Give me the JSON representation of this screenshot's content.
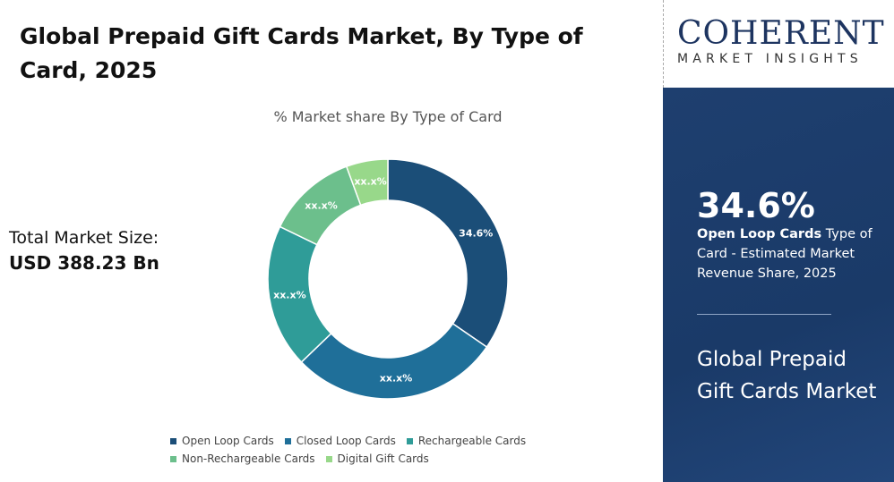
{
  "header": {
    "title": "Global Prepaid Gift Cards Market, By Type of Card, 2025"
  },
  "total_market": {
    "label": "Total Market Size:",
    "value": "USD 388.23 Bn"
  },
  "logo": {
    "name": "COHERENT",
    "tagline": "MARKET INSIGHTS"
  },
  "side_panel": {
    "highlight_value": "34.6%",
    "highlight_segment": "Open Loop Cards",
    "highlight_text": " Type of Card - Estimated Market Revenue Share, 2025",
    "market_name": "Global Prepaid Gift Cards Market"
  },
  "chart_data": {
    "type": "pie",
    "donut": true,
    "title": "% Market share By Type of Card",
    "categories": [
      "Open Loop Cards",
      "Closed Loop Cards",
      "Rechargeable Cards",
      "Non-Rechargeable Cards",
      "Digital Gift Cards"
    ],
    "values": [
      34.6,
      28.2,
      19.4,
      12.2,
      5.6
    ],
    "labels": [
      "34.6%",
      "xx.x%",
      "xx.x%",
      "xx.x%",
      "xx.x%"
    ],
    "colors": [
      "#1b4e78",
      "#1f6f99",
      "#2f9c98",
      "#6cbf8c",
      "#98d88a"
    ],
    "legend_position": "bottom"
  }
}
